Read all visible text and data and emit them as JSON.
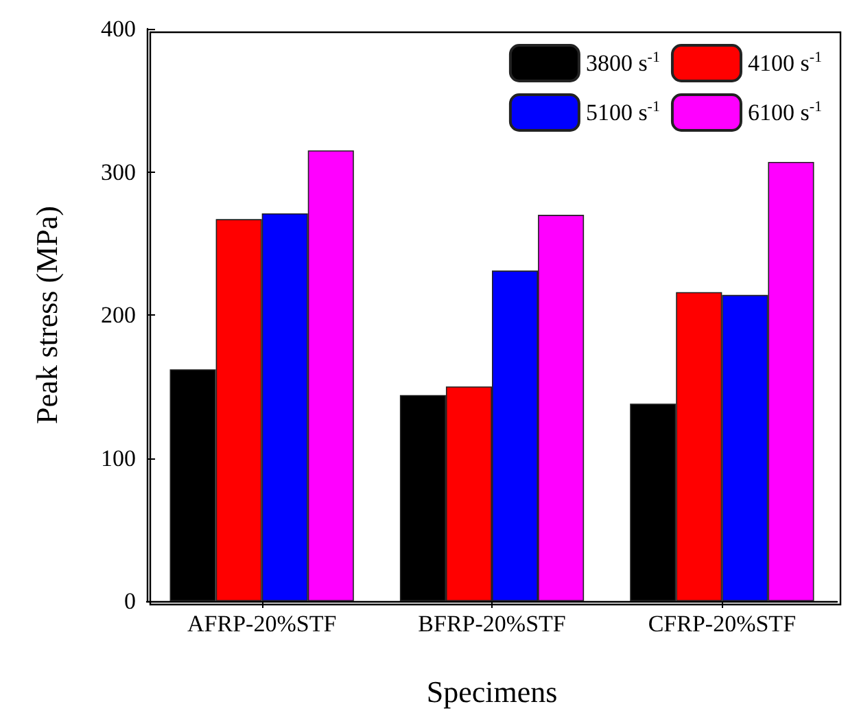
{
  "chart_data": {
    "type": "bar",
    "xlabel": "Specimens",
    "ylabel": "Peak stress (MPa)",
    "categories": [
      "AFRP-20%STF",
      "BFRP-20%STF",
      "CFRP-20%STF"
    ],
    "series": [
      {
        "name": "3800 s$^{-1}$",
        "color": "#000000",
        "values": [
          162,
          144,
          138
        ]
      },
      {
        "name": "4100 s$^{-1}$",
        "color": "#ff0000",
        "values": [
          267,
          150,
          216
        ]
      },
      {
        "name": "5100 s$^{-1}$",
        "color": "#0000ff",
        "values": [
          271,
          231,
          214
        ]
      },
      {
        "name": "6100 s$^{-1}$",
        "color": "#ff00ff",
        "values": [
          315,
          270,
          307
        ]
      }
    ],
    "ylim": [
      0,
      400
    ],
    "yticks": [
      0,
      100,
      200,
      300,
      400
    ],
    "grid": false,
    "legend": "top right"
  }
}
